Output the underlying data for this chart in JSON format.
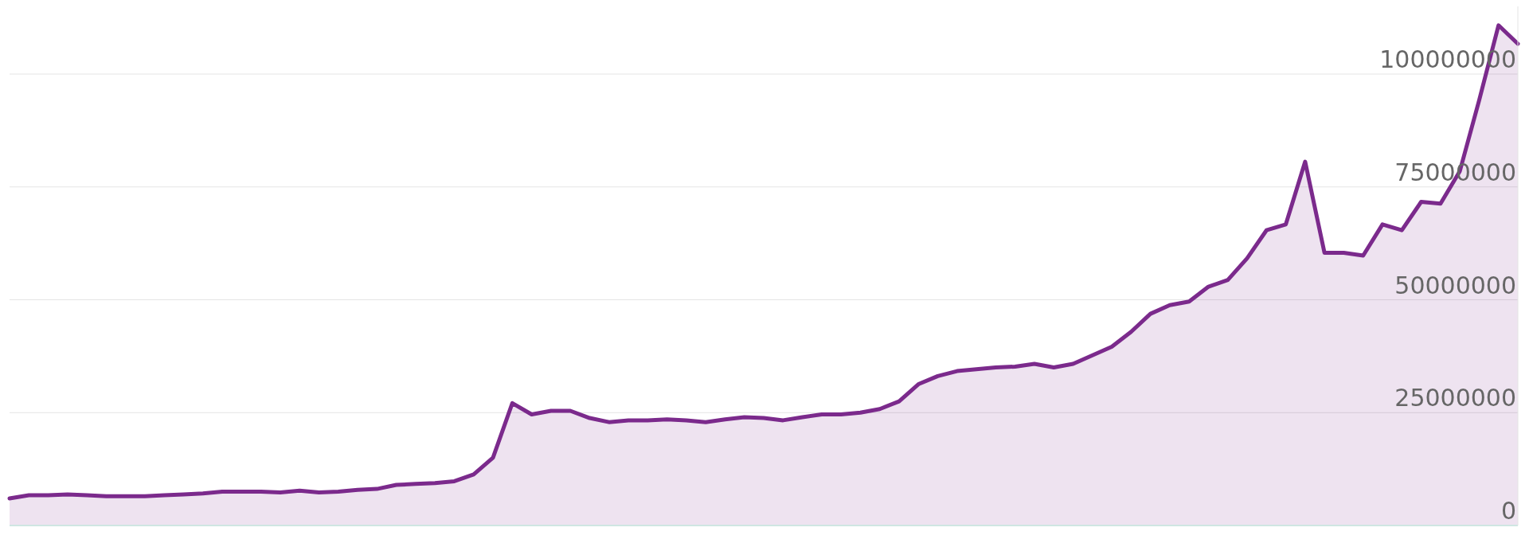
{
  "chart_data": {
    "type": "area",
    "categories": [
      null,
      null,
      null,
      null,
      null,
      null,
      null,
      null,
      null,
      null,
      null,
      null,
      null,
      null,
      null,
      null,
      null,
      null,
      null,
      null,
      null,
      null,
      null,
      null,
      null,
      null,
      null,
      null,
      null,
      null,
      null,
      null,
      null,
      null,
      null,
      null,
      null,
      null,
      null,
      null,
      null,
      null,
      null,
      null,
      null,
      null,
      null,
      null,
      null,
      null,
      null,
      null,
      null,
      null,
      null,
      null,
      null,
      null,
      null,
      null,
      null,
      null,
      null,
      null,
      null,
      null,
      null,
      null,
      null,
      null,
      null,
      null,
      null,
      null,
      null,
      null,
      null,
      null,
      null
    ],
    "series": [
      {
        "color": "#7b2a8c",
        "values": [
          6000000,
          6700000,
          6700000,
          6900000,
          6700000,
          6500000,
          6500000,
          6500000,
          6700000,
          6900000,
          7100000,
          7500000,
          7500000,
          7500000,
          7300000,
          7700000,
          7300000,
          7500000,
          7900000,
          8100000,
          9000000,
          9200000,
          9400000,
          9800000,
          11300000,
          15000000,
          27100000,
          24600000,
          25400000,
          25400000,
          23800000,
          22900000,
          23300000,
          23300000,
          23500000,
          23300000,
          22900000,
          23500000,
          24000000,
          23800000,
          23300000,
          24000000,
          24600000,
          24600000,
          25000000,
          25800000,
          27500000,
          31300000,
          33100000,
          34200000,
          34600000,
          35000000,
          35200000,
          35800000,
          35000000,
          35800000,
          37700000,
          39600000,
          42900000,
          46900000,
          48800000,
          49600000,
          52900000,
          54400000,
          59200000,
          65400000,
          66700000,
          80600000,
          60400000,
          60400000,
          59800000,
          66700000,
          65400000,
          71700000,
          71300000,
          78500000,
          94200000,
          110800000,
          106700000
        ]
      }
    ],
    "ylim": [
      0,
      115000000
    ],
    "yticks": [
      0,
      25000000,
      50000000,
      75000000,
      100000000
    ],
    "grid": "y",
    "tick_labels": "y"
  }
}
